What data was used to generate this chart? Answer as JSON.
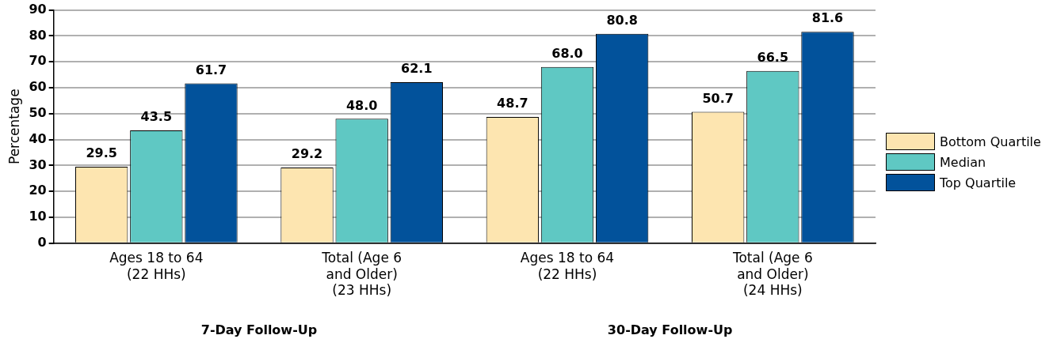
{
  "chart_data": {
    "type": "bar",
    "ylabel": "Percentage",
    "categories": [
      "Ages 18 to 64\n(22 HHs)",
      "Total (Age 6\nand Older)\n(23 HHs)",
      "Ages 18 to 64\n(22 HHs)",
      "Total (Age 6\nand Older)\n(24 HHs)"
    ],
    "series": [
      {
        "name": "Bottom Quartile",
        "color": "#fde5b0",
        "values": [
          29.5,
          29.2,
          48.7,
          50.7
        ],
        "value_labels": [
          "29.5",
          "29.2",
          "48.7",
          "50.7"
        ]
      },
      {
        "name": "Median",
        "color": "#5fc8c3",
        "values": [
          43.5,
          48.0,
          68.0,
          66.5
        ],
        "value_labels": [
          "43.5",
          "48.0",
          "68.0",
          "66.5"
        ]
      },
      {
        "name": "Top Quartile",
        "color": "#02529b",
        "values": [
          61.7,
          62.1,
          80.8,
          81.6
        ],
        "value_labels": [
          "61.7",
          "62.1",
          "80.8",
          "81.6"
        ]
      }
    ],
    "ylim": [
      0,
      90
    ],
    "yticks": [
      0,
      10,
      20,
      30,
      40,
      50,
      60,
      70,
      80,
      90
    ],
    "grid": "y",
    "legend": "right",
    "annotations": [
      "7-Day Follow-Up",
      "30-Day Follow-Up"
    ]
  }
}
